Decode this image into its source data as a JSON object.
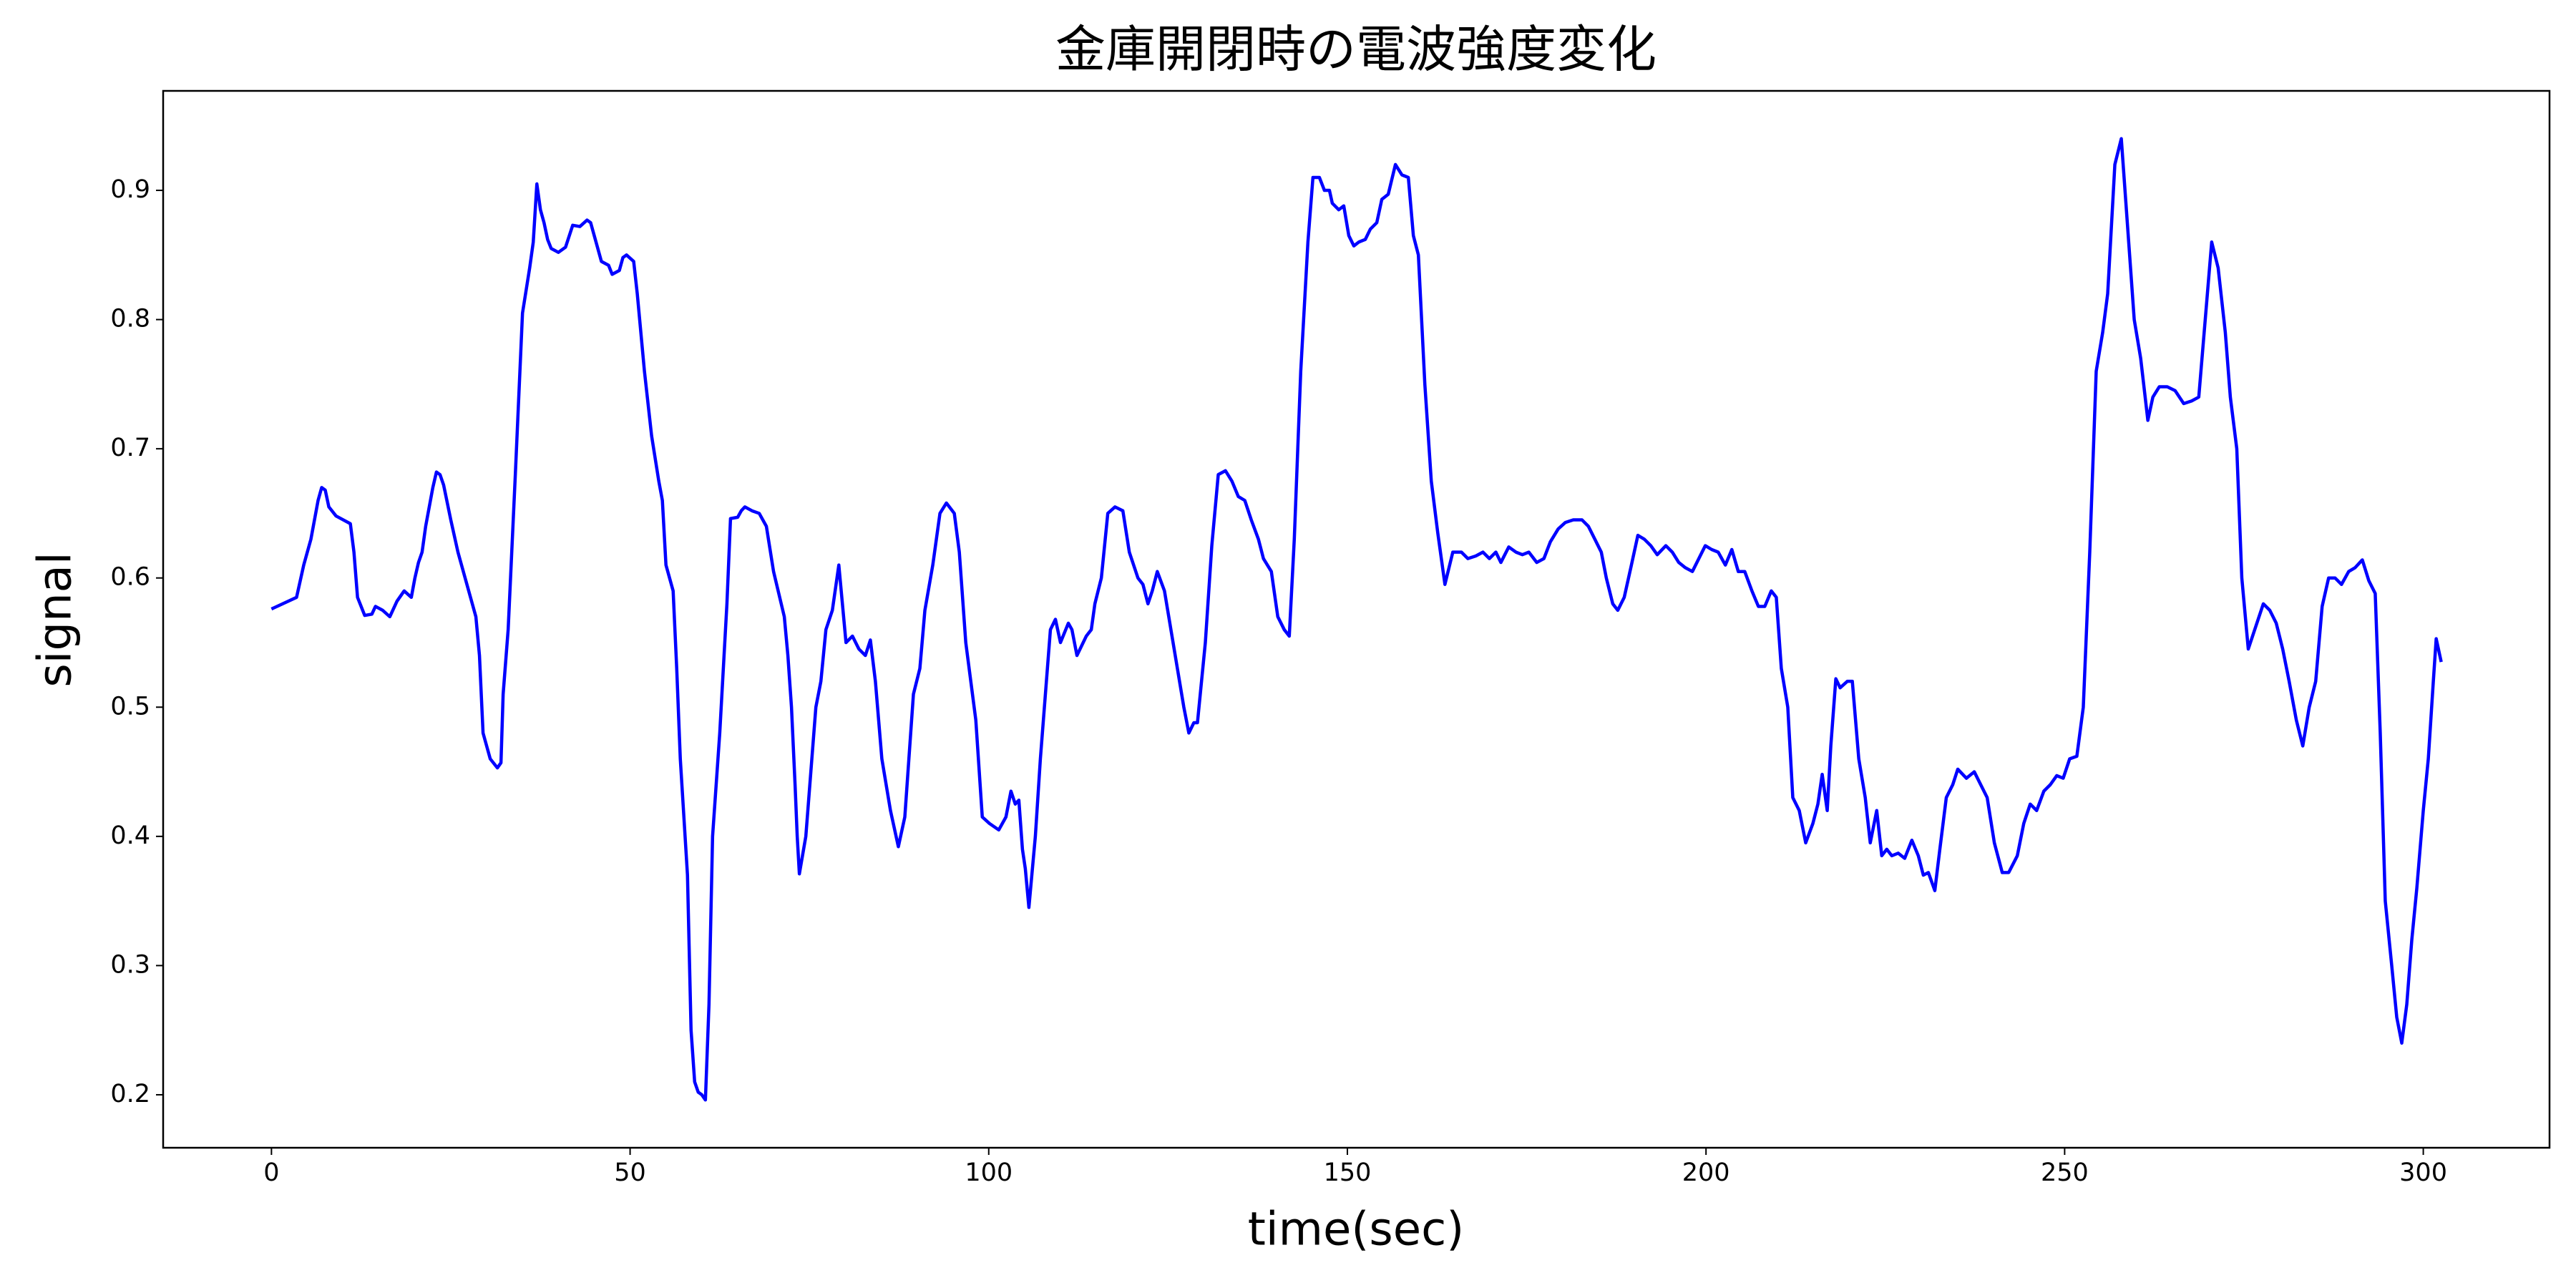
{
  "chart_data": {
    "type": "line",
    "title": "金庫開閉時の電波強度変化",
    "xlabel": "time(sec)",
    "ylabel": "signal",
    "color": "#0000ff",
    "grid": false,
    "xlim": [
      -15.1,
      317.6
    ],
    "ylim": [
      0.159,
      0.977
    ],
    "xticks": [
      0,
      50,
      100,
      150,
      200,
      250,
      300
    ],
    "yticks": [
      0.2,
      0.3,
      0.4,
      0.5,
      0.6,
      0.7,
      0.8,
      0.9
    ],
    "x": [
      0,
      3.5,
      4.5,
      5.5,
      6.5,
      7,
      7.5,
      8,
      9,
      11,
      11.5,
      12,
      13,
      14,
      14.5,
      15.5,
      16.5,
      17.5,
      18.5,
      19.5,
      20,
      20.5,
      21,
      21.5,
      22.5,
      23,
      23.5,
      24,
      25,
      26,
      27,
      28,
      28.5,
      29,
      29.5,
      30,
      30.5,
      31.5,
      32,
      32.3,
      33,
      34,
      35,
      36,
      36.5,
      37,
      37.5,
      38,
      38.5,
      39,
      40,
      41,
      42,
      43,
      44,
      44.5,
      45,
      46,
      47,
      47.5,
      48.5,
      49,
      49.5,
      50.5,
      51,
      52,
      53,
      54,
      54.5,
      55,
      56,
      56.5,
      57,
      58,
      58.5,
      59,
      59.5,
      60,
      60.5,
      61,
      61.5,
      62.5,
      63.5,
      64,
      65,
      65.5,
      66,
      67,
      68,
      69,
      70,
      71.5,
      72,
      72.5,
      73,
      73.3,
      73.6,
      74.5,
      75.2,
      75.9,
      76.6,
      77.3,
      78.2,
      79.1,
      80.1,
      81,
      81.9,
      82.8,
      83.5,
      84.2,
      85.1,
      86.3,
      87.4,
      88.3,
      89.5,
      90.4,
      91.1,
      92.2,
      93.2,
      94.1,
      95.2,
      95.9,
      96.8,
      98.2,
      99.1,
      100.1,
      101.4,
      102.4,
      103.1,
      103.7,
      104.2,
      104.7,
      105.1,
      105.6,
      106.5,
      107.2,
      108.6,
      109.3,
      110,
      111.1,
      111.6,
      112.3,
      113.6,
      114.3,
      114.8,
      115.7,
      116.6,
      117.6,
      118.7,
      119.6,
      120.8,
      121.5,
      122.2,
      122.8,
      123.5,
      124.5,
      125.1,
      126.3,
      127.2,
      127.9,
      128.6,
      129.1,
      130.2,
      131.1,
      132,
      133,
      133.9,
      134.8,
      135.7,
      136.6,
      137.6,
      138.3,
      139.4,
      140.3,
      141.2,
      141.9,
      142.6,
      143.5,
      144.5,
      145.2,
      146.1,
      146.8,
      147.5,
      147.9,
      148.8,
      149.5,
      150.2,
      150.9,
      151.6,
      152.5,
      153.2,
      154.1,
      154.8,
      155.7,
      156.7,
      157.6,
      158.5,
      159.2,
      159.9,
      160.8,
      161.7,
      162.6,
      163.6,
      164.7,
      165.9,
      166.8,
      167.9,
      168.9,
      169.8,
      170.7,
      171.4,
      172.5,
      173.5,
      174.4,
      175.3,
      176.4,
      177.4,
      178.3,
      179.4,
      180.4,
      181.5,
      182.7,
      183.6,
      184.5,
      185.4,
      186.1,
      187,
      187.7,
      188.6,
      189.6,
      190.5,
      191.4,
      192.3,
      193.2,
      194.4,
      195.3,
      196.2,
      197.1,
      198.1,
      199,
      199.9,
      200.8,
      201.7,
      202.7,
      203.6,
      204.5,
      205.4,
      206.4,
      207.3,
      208.2,
      209.1,
      209.8,
      210.5,
      211.4,
      212.1,
      213,
      213.9,
      214.9,
      215.6,
      216.2,
      216.9,
      217.4,
      218.1,
      218.7,
      219.7,
      220.4,
      221.3,
      222.2,
      222.9,
      223.8,
      224.5,
      225.2,
      225.9,
      226.8,
      227.7,
      228.7,
      229.6,
      230.3,
      231,
      231.9,
      232.6,
      233.5,
      234.4,
      235.1,
      236.3,
      237.4,
      238.3,
      239.2,
      240.2,
      241.3,
      242.2,
      243.4,
      244.3,
      245.2,
      246.1,
      247.1,
      248,
      248.9,
      249.8,
      250.7,
      251.7,
      252.6,
      253.5,
      254.4,
      255.3,
      256,
      257,
      257.9,
      258.8,
      259.7,
      260.6,
      261.6,
      262.3,
      263.2,
      264.3,
      265.4,
      266.6,
      267.7,
      268.7,
      269.6,
      270.5,
      271.4,
      272.4,
      273.1,
      274,
      274.7,
      275.6,
      276.5,
      277.7,
      278.6,
      279.5,
      280.4,
      281.3,
      282.3,
      283.2,
      284.1,
      285,
      285.9,
      286.8,
      287.7,
      288.6,
      289.6,
      290.5,
      291.5,
      292.4,
      293.3,
      294,
      294.7,
      295.6,
      296.3,
      297,
      297.7,
      298.4,
      299.1,
      300,
      300.7,
      301.4,
      301.8,
      302.5
    ],
    "values": [
      0.576,
      0.585,
      0.61,
      0.63,
      0.66,
      0.67,
      0.668,
      0.655,
      0.648,
      0.642,
      0.62,
      0.585,
      0.571,
      0.572,
      0.578,
      0.575,
      0.57,
      0.582,
      0.59,
      0.585,
      0.6,
      0.612,
      0.62,
      0.64,
      0.67,
      0.682,
      0.68,
      0.672,
      0.645,
      0.62,
      0.6,
      0.58,
      0.57,
      0.54,
      0.48,
      0.47,
      0.46,
      0.453,
      0.457,
      0.51,
      0.56,
      0.68,
      0.805,
      0.84,
      0.86,
      0.905,
      0.885,
      0.875,
      0.862,
      0.855,
      0.852,
      0.856,
      0.873,
      0.872,
      0.877,
      0.875,
      0.865,
      0.845,
      0.842,
      0.835,
      0.838,
      0.848,
      0.85,
      0.845,
      0.82,
      0.76,
      0.71,
      0.675,
      0.66,
      0.61,
      0.59,
      0.53,
      0.46,
      0.37,
      0.25,
      0.21,
      0.202,
      0.2,
      0.196,
      0.27,
      0.4,
      0.48,
      0.58,
      0.646,
      0.647,
      0.652,
      0.655,
      0.652,
      0.65,
      0.64,
      0.605,
      0.57,
      0.54,
      0.5,
      0.44,
      0.4,
      0.371,
      0.4,
      0.45,
      0.5,
      0.52,
      0.56,
      0.575,
      0.61,
      0.55,
      0.555,
      0.545,
      0.54,
      0.552,
      0.52,
      0.46,
      0.42,
      0.392,
      0.415,
      0.51,
      0.53,
      0.575,
      0.61,
      0.65,
      0.658,
      0.65,
      0.62,
      0.55,
      0.49,
      0.415,
      0.41,
      0.405,
      0.415,
      0.435,
      0.425,
      0.428,
      0.39,
      0.375,
      0.345,
      0.4,
      0.46,
      0.56,
      0.568,
      0.55,
      0.565,
      0.56,
      0.54,
      0.555,
      0.56,
      0.58,
      0.6,
      0.65,
      0.655,
      0.652,
      0.62,
      0.6,
      0.595,
      0.58,
      0.59,
      0.605,
      0.59,
      0.57,
      0.53,
      0.5,
      0.48,
      0.488,
      0.488,
      0.55,
      0.625,
      0.68,
      0.683,
      0.675,
      0.663,
      0.66,
      0.645,
      0.63,
      0.615,
      0.605,
      0.57,
      0.56,
      0.555,
      0.63,
      0.76,
      0.86,
      0.91,
      0.91,
      0.9,
      0.9,
      0.89,
      0.885,
      0.888,
      0.865,
      0.857,
      0.86,
      0.862,
      0.87,
      0.875,
      0.893,
      0.897,
      0.92,
      0.912,
      0.91,
      0.865,
      0.85,
      0.75,
      0.675,
      0.635,
      0.595,
      0.62,
      0.62,
      0.615,
      0.617,
      0.62,
      0.615,
      0.62,
      0.612,
      0.624,
      0.62,
      0.618,
      0.62,
      0.612,
      0.615,
      0.628,
      0.638,
      0.643,
      0.645,
      0.645,
      0.64,
      0.63,
      0.62,
      0.6,
      0.58,
      0.575,
      0.585,
      0.61,
      0.633,
      0.63,
      0.625,
      0.618,
      0.625,
      0.62,
      0.612,
      0.608,
      0.605,
      0.615,
      0.625,
      0.622,
      0.62,
      0.61,
      0.622,
      0.605,
      0.605,
      0.59,
      0.578,
      0.578,
      0.59,
      0.585,
      0.53,
      0.5,
      0.43,
      0.42,
      0.395,
      0.41,
      0.425,
      0.448,
      0.42,
      0.47,
      0.522,
      0.515,
      0.52,
      0.52,
      0.46,
      0.43,
      0.395,
      0.42,
      0.385,
      0.39,
      0.385,
      0.387,
      0.383,
      0.397,
      0.385,
      0.37,
      0.372,
      0.358,
      0.39,
      0.43,
      0.44,
      0.452,
      0.445,
      0.45,
      0.44,
      0.43,
      0.395,
      0.372,
      0.372,
      0.385,
      0.41,
      0.425,
      0.42,
      0.435,
      0.44,
      0.447,
      0.445,
      0.46,
      0.462,
      0.5,
      0.62,
      0.76,
      0.79,
      0.82,
      0.92,
      0.94,
      0.87,
      0.8,
      0.77,
      0.722,
      0.74,
      0.748,
      0.748,
      0.745,
      0.735,
      0.737,
      0.74,
      0.8,
      0.86,
      0.84,
      0.79,
      0.74,
      0.7,
      0.6,
      0.545,
      0.56,
      0.58,
      0.575,
      0.565,
      0.545,
      0.52,
      0.49,
      0.47,
      0.5,
      0.52,
      0.578,
      0.6,
      0.6,
      0.595,
      0.605,
      0.608,
      0.614,
      0.598,
      0.588,
      0.48,
      0.35,
      0.3,
      0.26,
      0.24,
      0.27,
      0.32,
      0.36,
      0.42,
      0.46,
      0.52,
      0.553,
      0.535
    ]
  }
}
